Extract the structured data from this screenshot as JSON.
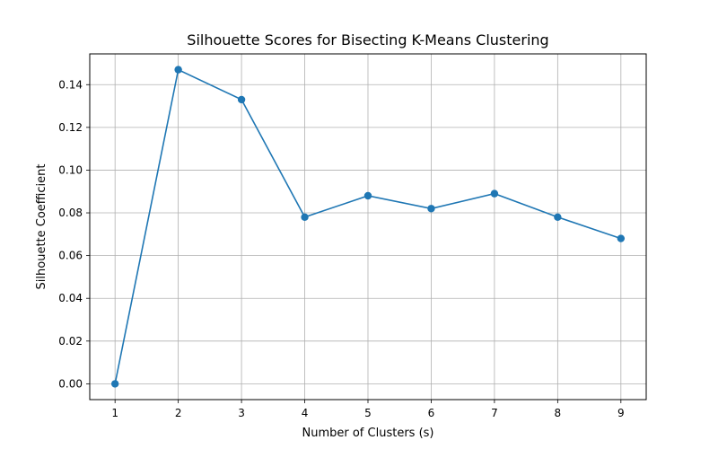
{
  "chart_data": {
    "type": "line",
    "title": "Silhouette Scores for Bisecting K-Means Clustering",
    "xlabel": "Number of Clusters (s)",
    "ylabel": "Silhouette Coefficient",
    "x": [
      1,
      2,
      3,
      4,
      5,
      6,
      7,
      8,
      9
    ],
    "series": [
      {
        "name": "",
        "values": [
          0.0,
          0.147,
          0.133,
          0.078,
          0.088,
          0.082,
          0.089,
          0.078,
          0.068
        ],
        "color": "#1f77b4",
        "marker": "circle"
      }
    ],
    "xticks": [
      "1",
      "2",
      "3",
      "4",
      "5",
      "6",
      "7",
      "8",
      "9"
    ],
    "yticks": [
      "0.00",
      "0.02",
      "0.04",
      "0.06",
      "0.08",
      "0.10",
      "0.12",
      "0.14"
    ],
    "xlim": [
      0.6,
      9.4
    ],
    "ylim": [
      -0.0074,
      0.1544
    ],
    "grid": true
  }
}
